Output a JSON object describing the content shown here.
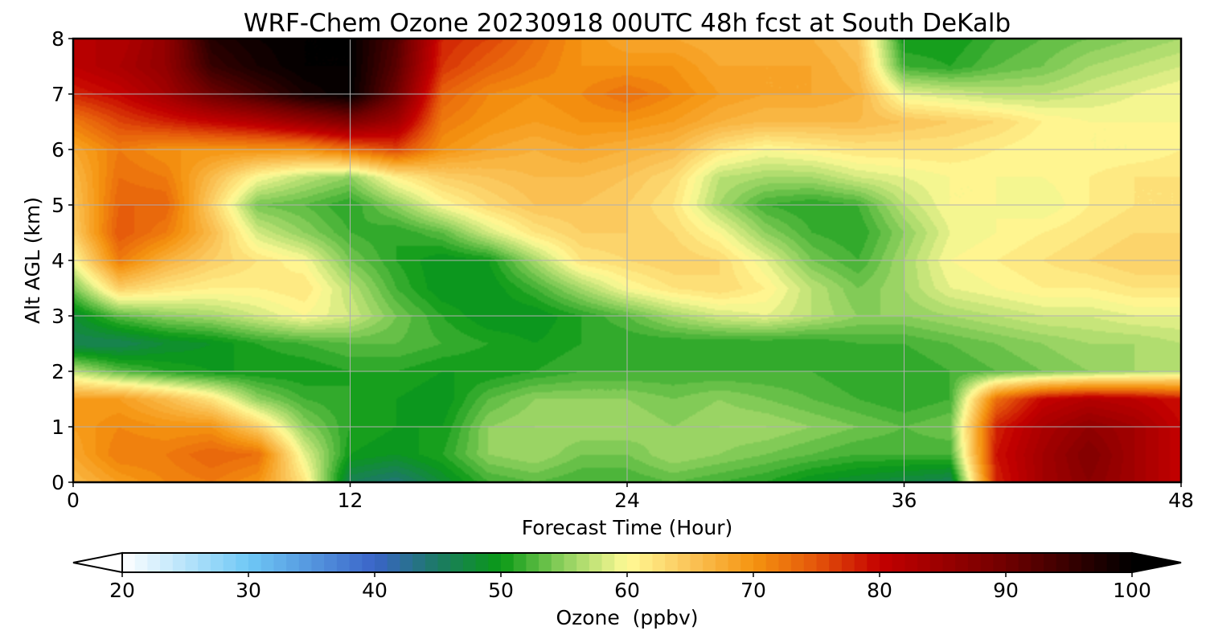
{
  "chart_data": {
    "type": "heatmap",
    "title": "WRF-Chem Ozone  20230918 00UTC 48h fcst at South DeKalb",
    "xlabel": "Forecast Time (Hour)",
    "ylabel": "Alt AGL (km)",
    "xlim": [
      0,
      48
    ],
    "ylim": [
      0,
      8
    ],
    "xticks": [
      0,
      12,
      24,
      36,
      48
    ],
    "yticks": [
      0,
      1,
      2,
      3,
      4,
      5,
      6,
      7,
      8
    ],
    "grid": true,
    "colorbar": {
      "label": "Ozone  (ppbv)",
      "min": 20,
      "max": 100,
      "ticks": [
        20,
        30,
        40,
        50,
        60,
        70,
        80,
        90,
        100
      ],
      "extend": "both",
      "colors": [
        {
          "v": 20,
          "c": "#ffffff"
        },
        {
          "v": 30,
          "c": "#6fc8f5"
        },
        {
          "v": 40,
          "c": "#3a64c8"
        },
        {
          "v": 45,
          "c": "#1c7a64"
        },
        {
          "v": 50,
          "c": "#0a9a16"
        },
        {
          "v": 55,
          "c": "#8fd05e"
        },
        {
          "v": 60,
          "c": "#fffa96"
        },
        {
          "v": 65,
          "c": "#fbc458"
        },
        {
          "v": 70,
          "c": "#f59410"
        },
        {
          "v": 75,
          "c": "#e4560a"
        },
        {
          "v": 80,
          "c": "#c40000"
        },
        {
          "v": 90,
          "c": "#700000"
        },
        {
          "v": 100,
          "c": "#000000"
        }
      ]
    },
    "x": [
      0,
      2,
      4,
      6,
      8,
      10,
      12,
      14,
      16,
      18,
      20,
      22,
      24,
      26,
      28,
      30,
      32,
      34,
      36,
      38,
      40,
      42,
      44,
      46,
      48
    ],
    "y": [
      0,
      0.5,
      1,
      1.5,
      2,
      2.5,
      3,
      3.5,
      4,
      4.5,
      5,
      5.5,
      6,
      6.5,
      7,
      7.5,
      8
    ],
    "z": [
      [
        66,
        69,
        71,
        72,
        70,
        62,
        46,
        44,
        48,
        52,
        53,
        52,
        52,
        53,
        52,
        51,
        49,
        48,
        47,
        46,
        78,
        84,
        87,
        84,
        80
      ],
      [
        68,
        72,
        72,
        74,
        73,
        59,
        50,
        49,
        51,
        55,
        56,
        54,
        54,
        56,
        55,
        54,
        53,
        52,
        52,
        52,
        79,
        84,
        88,
        84,
        80
      ],
      [
        69,
        71,
        70,
        70,
        64,
        55,
        51,
        50,
        50,
        55,
        56,
        56,
        56,
        55,
        56,
        56,
        55,
        54,
        53,
        54,
        78,
        83,
        86,
        84,
        80
      ],
      [
        69,
        69,
        66,
        62,
        55,
        52,
        51,
        50,
        49,
        53,
        55,
        55,
        55,
        54,
        55,
        54,
        53,
        52,
        51,
        52,
        73,
        80,
        82,
        81,
        79
      ],
      [
        57,
        53,
        51,
        50,
        50,
        50,
        51,
        51,
        50,
        50,
        51,
        52,
        52,
        52,
        52,
        52,
        52,
        51,
        51,
        52,
        53,
        54,
        55,
        56,
        57
      ],
      [
        46,
        46,
        48,
        49,
        51,
        52,
        53,
        53,
        52,
        51,
        50,
        51,
        51,
        51,
        51,
        51,
        51,
        52,
        52,
        53,
        54,
        55,
        56,
        56,
        57
      ],
      [
        48,
        53,
        55,
        56,
        58,
        60,
        58,
        54,
        51,
        49,
        49,
        51,
        53,
        56,
        58,
        59,
        57,
        55,
        55,
        56,
        57,
        58,
        58,
        59,
        59
      ],
      [
        54,
        64,
        62,
        61,
        61,
        62,
        57,
        52,
        49,
        49,
        52,
        56,
        60,
        62,
        63,
        61,
        57,
        54,
        56,
        59,
        60,
        61,
        61,
        62,
        62
      ],
      [
        60,
        72,
        67,
        64,
        62,
        60,
        54,
        51,
        49,
        50,
        56,
        62,
        63,
        64,
        63,
        59,
        54,
        52,
        56,
        60,
        61,
        62,
        63,
        64,
        64
      ],
      [
        64,
        75,
        72,
        66,
        58,
        55,
        52,
        51,
        53,
        58,
        62,
        64,
        64,
        63,
        60,
        55,
        52,
        51,
        55,
        59,
        60,
        61,
        62,
        63,
        63
      ],
      [
        65,
        74,
        74,
        64,
        54,
        53,
        51,
        55,
        60,
        63,
        65,
        65,
        64,
        62,
        56,
        52,
        51,
        52,
        57,
        60,
        60,
        59,
        61,
        62,
        62
      ],
      [
        66,
        73,
        72,
        66,
        60,
        57,
        55,
        61,
        64,
        65,
        66,
        66,
        65,
        63,
        57,
        56,
        56,
        58,
        59,
        60,
        60,
        60,
        61,
        62,
        62
      ],
      [
        68,
        72,
        70,
        70,
        70,
        70,
        73,
        76,
        70,
        68,
        67,
        68,
        67,
        66,
        62,
        60,
        61,
        62,
        62,
        62,
        61,
        60,
        60,
        60,
        61
      ],
      [
        72,
        76,
        78,
        80,
        82,
        85,
        88,
        84,
        72,
        70,
        69,
        70,
        70,
        69,
        67,
        66,
        66,
        66,
        65,
        64,
        63,
        61,
        60,
        60,
        60
      ],
      [
        78,
        80,
        84,
        90,
        94,
        98,
        100,
        90,
        74,
        71,
        70,
        71,
        73,
        71,
        69,
        68,
        68,
        67,
        59,
        58,
        57,
        57,
        58,
        59,
        60
      ],
      [
        81,
        83,
        86,
        95,
        98,
        100,
        100,
        92,
        77,
        74,
        72,
        70,
        70,
        70,
        68,
        68,
        68,
        66,
        52,
        51,
        53,
        54,
        56,
        57,
        58
      ],
      [
        82,
        82,
        86,
        97,
        99,
        100,
        100,
        93,
        78,
        76,
        73,
        70,
        68,
        68,
        67,
        67,
        67,
        65,
        50,
        50,
        52,
        53,
        54,
        55,
        56
      ]
    ]
  }
}
